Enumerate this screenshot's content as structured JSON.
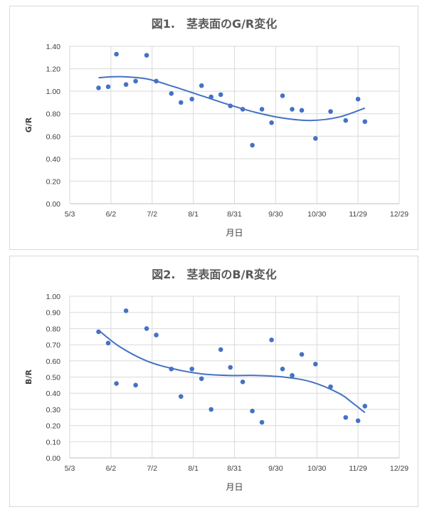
{
  "chart_data": [
    {
      "type": "scatter",
      "title": "図1.　茎表面のG/R変化",
      "xlabel": "月日",
      "ylabel": "G/R",
      "x_ticks": [
        "5/3",
        "6/2",
        "7/2",
        "8/1",
        "8/31",
        "9/30",
        "10/30",
        "11/29",
        "12/29"
      ],
      "y_ticks": [
        "0.00",
        "0.20",
        "0.40",
        "0.60",
        "0.80",
        "1.00",
        "1.20",
        "1.40"
      ],
      "ylim": [
        0,
        1.4
      ],
      "xlim_days_from_5_3": [
        0,
        240
      ],
      "grid": true,
      "trendline": "polynomial",
      "point_color": "#4472C4",
      "points": [
        {
          "x": "5/24",
          "y": 1.03
        },
        {
          "x": "5/31",
          "y": 1.04
        },
        {
          "x": "6/6",
          "y": 1.33
        },
        {
          "x": "6/13",
          "y": 1.06
        },
        {
          "x": "6/20",
          "y": 1.09
        },
        {
          "x": "6/28",
          "y": 1.32
        },
        {
          "x": "7/5",
          "y": 1.09
        },
        {
          "x": "7/16",
          "y": 0.98
        },
        {
          "x": "7/23",
          "y": 0.9
        },
        {
          "x": "7/31",
          "y": 0.93
        },
        {
          "x": "8/7",
          "y": 1.05
        },
        {
          "x": "8/14",
          "y": 0.95
        },
        {
          "x": "8/21",
          "y": 0.97
        },
        {
          "x": "8/28",
          "y": 0.87
        },
        {
          "x": "9/6",
          "y": 0.84
        },
        {
          "x": "9/13",
          "y": 0.52
        },
        {
          "x": "9/20",
          "y": 0.84
        },
        {
          "x": "9/27",
          "y": 0.72
        },
        {
          "x": "10/5",
          "y": 0.96
        },
        {
          "x": "10/12",
          "y": 0.84
        },
        {
          "x": "10/19",
          "y": 0.83
        },
        {
          "x": "10/29",
          "y": 0.58
        },
        {
          "x": "11/9",
          "y": 0.82
        },
        {
          "x": "11/20",
          "y": 0.74
        },
        {
          "x": "11/29",
          "y": 0.93
        },
        {
          "x": "12/4",
          "y": 0.73
        }
      ],
      "trend": [
        {
          "x": "5/24",
          "y": 1.12
        },
        {
          "x": "6/8",
          "y": 1.13
        },
        {
          "x": "6/28",
          "y": 1.11
        },
        {
          "x": "7/18",
          "y": 1.04
        },
        {
          "x": "8/7",
          "y": 0.96
        },
        {
          "x": "8/27",
          "y": 0.88
        },
        {
          "x": "9/16",
          "y": 0.81
        },
        {
          "x": "10/6",
          "y": 0.76
        },
        {
          "x": "10/26",
          "y": 0.74
        },
        {
          "x": "11/15",
          "y": 0.77
        },
        {
          "x": "12/4",
          "y": 0.85
        }
      ]
    },
    {
      "type": "scatter",
      "title": "図2.　茎表面のB/R変化",
      "xlabel": "月日",
      "ylabel": "B/R",
      "x_ticks": [
        "5/3",
        "6/2",
        "7/2",
        "8/1",
        "8/31",
        "9/30",
        "10/30",
        "11/29",
        "12/29"
      ],
      "y_ticks": [
        "0.00",
        "0.10",
        "0.20",
        "0.30",
        "0.40",
        "0.50",
        "0.60",
        "0.70",
        "0.80",
        "0.90",
        "1.00"
      ],
      "ylim": [
        0,
        1.0
      ],
      "xlim_days_from_5_3": [
        0,
        240
      ],
      "grid": true,
      "trendline": "polynomial",
      "point_color": "#4472C4",
      "points": [
        {
          "x": "5/24",
          "y": 0.78
        },
        {
          "x": "5/31",
          "y": 0.71
        },
        {
          "x": "6/6",
          "y": 0.46
        },
        {
          "x": "6/13",
          "y": 0.91
        },
        {
          "x": "6/20",
          "y": 0.45
        },
        {
          "x": "6/28",
          "y": 0.8
        },
        {
          "x": "7/5",
          "y": 0.76
        },
        {
          "x": "7/16",
          "y": 0.55
        },
        {
          "x": "7/23",
          "y": 0.38
        },
        {
          "x": "7/31",
          "y": 0.55
        },
        {
          "x": "8/7",
          "y": 0.49
        },
        {
          "x": "8/14",
          "y": 0.3
        },
        {
          "x": "8/21",
          "y": 0.67
        },
        {
          "x": "8/28",
          "y": 0.56
        },
        {
          "x": "9/6",
          "y": 0.47
        },
        {
          "x": "9/13",
          "y": 0.29
        },
        {
          "x": "9/20",
          "y": 0.22
        },
        {
          "x": "9/27",
          "y": 0.73
        },
        {
          "x": "10/5",
          "y": 0.55
        },
        {
          "x": "10/12",
          "y": 0.51
        },
        {
          "x": "10/19",
          "y": 0.64
        },
        {
          "x": "10/29",
          "y": 0.58
        },
        {
          "x": "11/9",
          "y": 0.44
        },
        {
          "x": "11/20",
          "y": 0.25
        },
        {
          "x": "11/29",
          "y": 0.23
        },
        {
          "x": "12/4",
          "y": 0.32
        }
      ],
      "trend": [
        {
          "x": "5/24",
          "y": 0.79
        },
        {
          "x": "6/8",
          "y": 0.69
        },
        {
          "x": "6/28",
          "y": 0.6
        },
        {
          "x": "7/18",
          "y": 0.55
        },
        {
          "x": "8/7",
          "y": 0.52
        },
        {
          "x": "8/27",
          "y": 0.51
        },
        {
          "x": "9/16",
          "y": 0.51
        },
        {
          "x": "10/6",
          "y": 0.5
        },
        {
          "x": "10/26",
          "y": 0.47
        },
        {
          "x": "11/15",
          "y": 0.4
        },
        {
          "x": "11/25",
          "y": 0.34
        },
        {
          "x": "12/4",
          "y": 0.28
        }
      ]
    }
  ]
}
